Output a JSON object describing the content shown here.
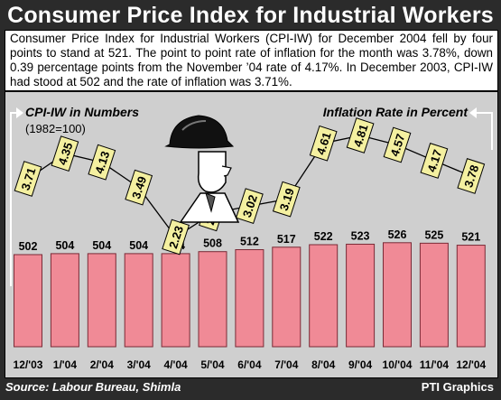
{
  "title": "Consumer Price Index for Industrial Workers",
  "summary": "Consumer Price Index for Industrial Workers (CPI-IW) for December 2004 fell by four points to stand at 521. The point to point rate of inflation for the month was 3.78%, down 0.39 percentage points from the November ’04 rate of 4.17%. In December 2003, CPI-IW had stood at 502 and the rate of inflation was 3.71%.",
  "source": "Source: Labour Bureau, Shimla",
  "credit": "PTI Graphics",
  "colors": {
    "bar": "#f08a96",
    "bar_edge": "#7a2a36",
    "tag": "#f4f0a0",
    "panel": "#cfcfcf",
    "frame": "#2b2b2b"
  },
  "icon": "worker-with-helmet-icon",
  "chart_data": [
    {
      "type": "bar",
      "label": "CPI-IW in Numbers",
      "sublabel": "(1982=100)",
      "categories": [
        "12/'03",
        "1/'04",
        "2/'04",
        "3/'04",
        "4/'04",
        "5/'04",
        "6/'04",
        "7/'04",
        "8/'04",
        "9/'04",
        "10/'04",
        "11/'04",
        "12/'04"
      ],
      "values": [
        502,
        504,
        504,
        504,
        504,
        508,
        512,
        517,
        522,
        523,
        526,
        525,
        521
      ]
    },
    {
      "type": "line",
      "label": "Inflation Rate in Percent",
      "categories": [
        "12/'03",
        "1/'04",
        "2/'04",
        "3/'04",
        "4/'04",
        "5/'04",
        "6/'04",
        "7/'04",
        "8/'04",
        "9/'04",
        "10/'04",
        "11/'04",
        "12/'04"
      ],
      "values": [
        3.71,
        4.35,
        4.13,
        3.49,
        2.23,
        2.83,
        3.02,
        3.19,
        4.61,
        4.81,
        4.57,
        4.17,
        3.78
      ]
    }
  ]
}
